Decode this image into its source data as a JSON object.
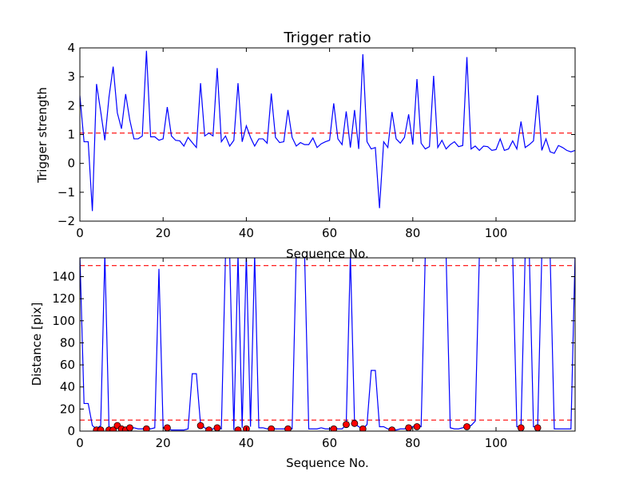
{
  "colors": {
    "line": "#0000ff",
    "threshold": "#ff0000",
    "marker_fill": "#ff0000",
    "marker_edge": "#000000",
    "axes": "#000000",
    "background": "#ffffff"
  },
  "chart_data": [
    {
      "type": "line",
      "title": "Trigger ratio",
      "xlabel": "Sequence No.",
      "ylabel": "Trigger strength",
      "xlim": [
        0,
        119
      ],
      "ylim": [
        -2,
        4
      ],
      "xticks": [
        0,
        20,
        40,
        60,
        80,
        100
      ],
      "yticks": [
        -2,
        -1,
        0,
        1,
        2,
        3,
        4
      ],
      "xtick_labels": [
        "0",
        "20",
        "40",
        "60",
        "80",
        "100"
      ],
      "ytick_labels": [
        "−2",
        "−1",
        "0",
        "1",
        "2",
        "3",
        "4"
      ],
      "grid": false,
      "threshold": 1.05,
      "series": [
        {
          "x": [
            0,
            1,
            2,
            3,
            4,
            5,
            6,
            7,
            8,
            9,
            10,
            11,
            12,
            13,
            14,
            15,
            16,
            17,
            18,
            19,
            20,
            21,
            22,
            23,
            24,
            25,
            26,
            27,
            28,
            29,
            30,
            31,
            32,
            33,
            34,
            35,
            36,
            37,
            38,
            39,
            40,
            41,
            42,
            43,
            44,
            45,
            46,
            47,
            48,
            49,
            50,
            51,
            52,
            53,
            54,
            55,
            56,
            57,
            58,
            59,
            60,
            61,
            62,
            63,
            64,
            65,
            66,
            67,
            68,
            69,
            70,
            71,
            72,
            73,
            74,
            75,
            76,
            77,
            78,
            79,
            80,
            81,
            82,
            83,
            84,
            85,
            86,
            87,
            88,
            89,
            90,
            91,
            92,
            93,
            94,
            95,
            96,
            97,
            98,
            99,
            100,
            101,
            102,
            103,
            104,
            105,
            106,
            107,
            108,
            109,
            110,
            111,
            112,
            113,
            114,
            115,
            116,
            117,
            118,
            119
          ],
          "y": [
            2.35,
            0.75,
            0.75,
            -1.65,
            2.75,
            1.8,
            0.8,
            2.3,
            3.35,
            1.75,
            1.2,
            2.4,
            1.5,
            0.85,
            0.85,
            0.95,
            3.9,
            0.92,
            0.92,
            0.8,
            0.85,
            1.95,
            0.95,
            0.8,
            0.78,
            0.6,
            0.9,
            0.72,
            0.55,
            2.78,
            0.95,
            1.05,
            0.95,
            3.3,
            0.75,
            0.95,
            0.6,
            0.8,
            2.78,
            0.75,
            1.3,
            0.9,
            0.6,
            0.85,
            0.85,
            0.7,
            2.42,
            0.9,
            0.72,
            0.75,
            1.85,
            0.9,
            0.6,
            0.72,
            0.65,
            0.65,
            0.88,
            0.55,
            0.68,
            0.75,
            0.8,
            2.08,
            0.85,
            0.65,
            1.8,
            0.55,
            1.85,
            0.5,
            3.78,
            0.75,
            0.5,
            0.55,
            -1.55,
            0.75,
            0.55,
            1.78,
            0.85,
            0.7,
            0.9,
            1.7,
            0.65,
            2.92,
            0.7,
            0.5,
            0.58,
            3.03,
            0.55,
            0.8,
            0.5,
            0.65,
            0.75,
            0.58,
            0.62,
            3.68,
            0.5,
            0.6,
            0.45,
            0.6,
            0.58,
            0.45,
            0.48,
            0.85,
            0.45,
            0.5,
            0.78,
            0.5,
            1.45,
            0.55,
            0.65,
            0.78,
            2.36,
            0.45,
            0.85,
            0.4,
            0.35,
            0.62,
            0.55,
            0.45,
            0.4,
            0.45
          ]
        }
      ]
    },
    {
      "type": "line",
      "title": "",
      "xlabel": "Sequence No.",
      "ylabel": "Distance [pix]",
      "xlim": [
        0,
        119
      ],
      "ylim": [
        0,
        157
      ],
      "xticks": [
        0,
        20,
        40,
        60,
        80,
        100
      ],
      "yticks": [
        0,
        20,
        40,
        60,
        80,
        100,
        120,
        140
      ],
      "xtick_labels": [
        "0",
        "20",
        "40",
        "60",
        "80",
        "100"
      ],
      "ytick_labels": [
        "0",
        "20",
        "40",
        "60",
        "80",
        "100",
        "120",
        "140"
      ],
      "grid": false,
      "thresholds": [
        150,
        10
      ],
      "series": [
        {
          "x": [
            0,
            1,
            2,
            3,
            4,
            5,
            6,
            7,
            8,
            9,
            10,
            11,
            12,
            13,
            14,
            15,
            16,
            17,
            18,
            19,
            20,
            21,
            22,
            23,
            24,
            25,
            26,
            27,
            28,
            29,
            30,
            31,
            32,
            33,
            34,
            35,
            36,
            37,
            38,
            39,
            40,
            41,
            42,
            43,
            44,
            45,
            46,
            47,
            48,
            49,
            50,
            51,
            52,
            53,
            54,
            55,
            56,
            57,
            58,
            59,
            60,
            61,
            62,
            63,
            64,
            65,
            66,
            67,
            68,
            69,
            70,
            71,
            72,
            73,
            74,
            75,
            76,
            77,
            78,
            79,
            80,
            81,
            82,
            83,
            84,
            85,
            86,
            87,
            88,
            89,
            90,
            91,
            92,
            93,
            94,
            95,
            96,
            97,
            98,
            99,
            100,
            101,
            102,
            103,
            104,
            105,
            106,
            107,
            108,
            109,
            110,
            111,
            112,
            113,
            114,
            115,
            116,
            117,
            118,
            119
          ],
          "y": [
            160,
            25,
            25,
            5,
            2,
            5,
            160,
            3,
            3,
            6,
            4,
            2,
            3,
            3,
            2,
            2,
            3,
            2,
            3,
            147,
            3,
            3,
            1,
            1,
            1,
            1,
            2,
            52,
            52,
            6,
            3,
            1,
            2,
            3,
            2,
            160,
            160,
            1,
            160,
            3,
            160,
            4,
            160,
            3,
            3,
            2,
            3,
            2,
            2,
            2,
            2,
            2,
            160,
            160,
            160,
            2,
            2,
            2,
            3,
            2,
            2,
            3,
            2,
            2,
            6,
            160,
            7,
            4,
            2,
            6,
            55,
            55,
            4,
            4,
            2,
            2,
            1,
            2,
            2,
            3,
            4,
            5,
            4,
            160,
            160,
            160,
            160,
            160,
            160,
            3,
            2,
            2,
            3,
            5,
            5,
            9,
            160,
            160,
            160,
            160,
            160,
            160,
            160,
            160,
            160,
            4,
            4,
            160,
            160,
            4,
            4,
            160,
            160,
            160,
            2,
            2,
            2,
            2,
            2,
            160
          ]
        }
      ],
      "markers": {
        "x": [
          4,
          5,
          7,
          8,
          9,
          10,
          11,
          12,
          16,
          21,
          29,
          31,
          33,
          38,
          40,
          46,
          50,
          61,
          64,
          66,
          68,
          75,
          79,
          81,
          93,
          106,
          110
        ],
        "y": [
          1,
          1,
          1,
          1,
          5,
          2,
          1,
          3,
          2,
          3,
          5,
          1,
          3,
          1,
          2,
          2,
          2,
          2,
          6,
          7,
          2,
          1,
          3,
          4,
          4,
          3,
          3
        ]
      }
    }
  ]
}
